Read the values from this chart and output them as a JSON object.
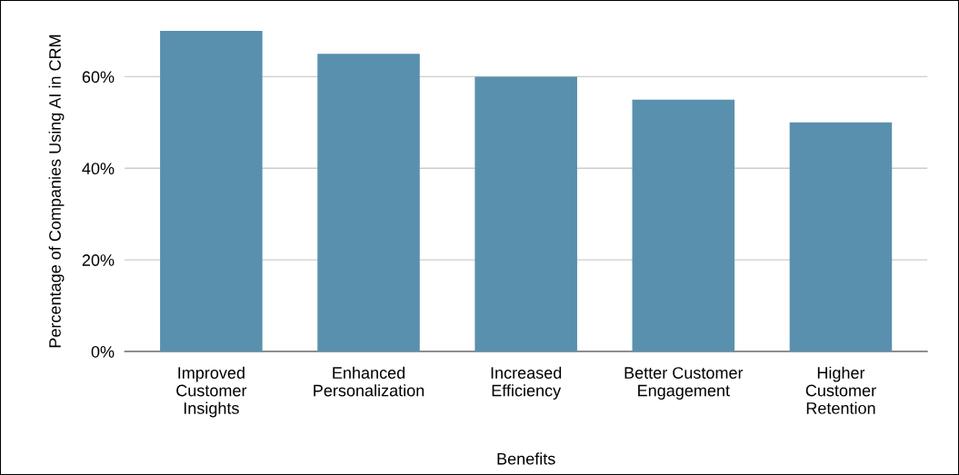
{
  "chart_data": {
    "type": "bar",
    "xlabel": "Benefits",
    "ylabel": "Percentage of Companies Using AI in CRM",
    "categories": [
      "Improved\nCustomer\nInsights",
      "Enhanced\nPersonalization",
      "Increased\nEfficiency",
      "Better Customer\nEngagement",
      "Higher\nCustomer\nRetention"
    ],
    "values": [
      70,
      65,
      60,
      55,
      50
    ],
    "color": "#5990ae",
    "ylim": [
      0,
      70
    ],
    "yticks": [
      {
        "value": 0,
        "label": "0%"
      },
      {
        "value": 20,
        "label": "20%"
      },
      {
        "value": 40,
        "label": "40%"
      },
      {
        "value": 60,
        "label": "60%"
      }
    ],
    "grid": "y"
  }
}
